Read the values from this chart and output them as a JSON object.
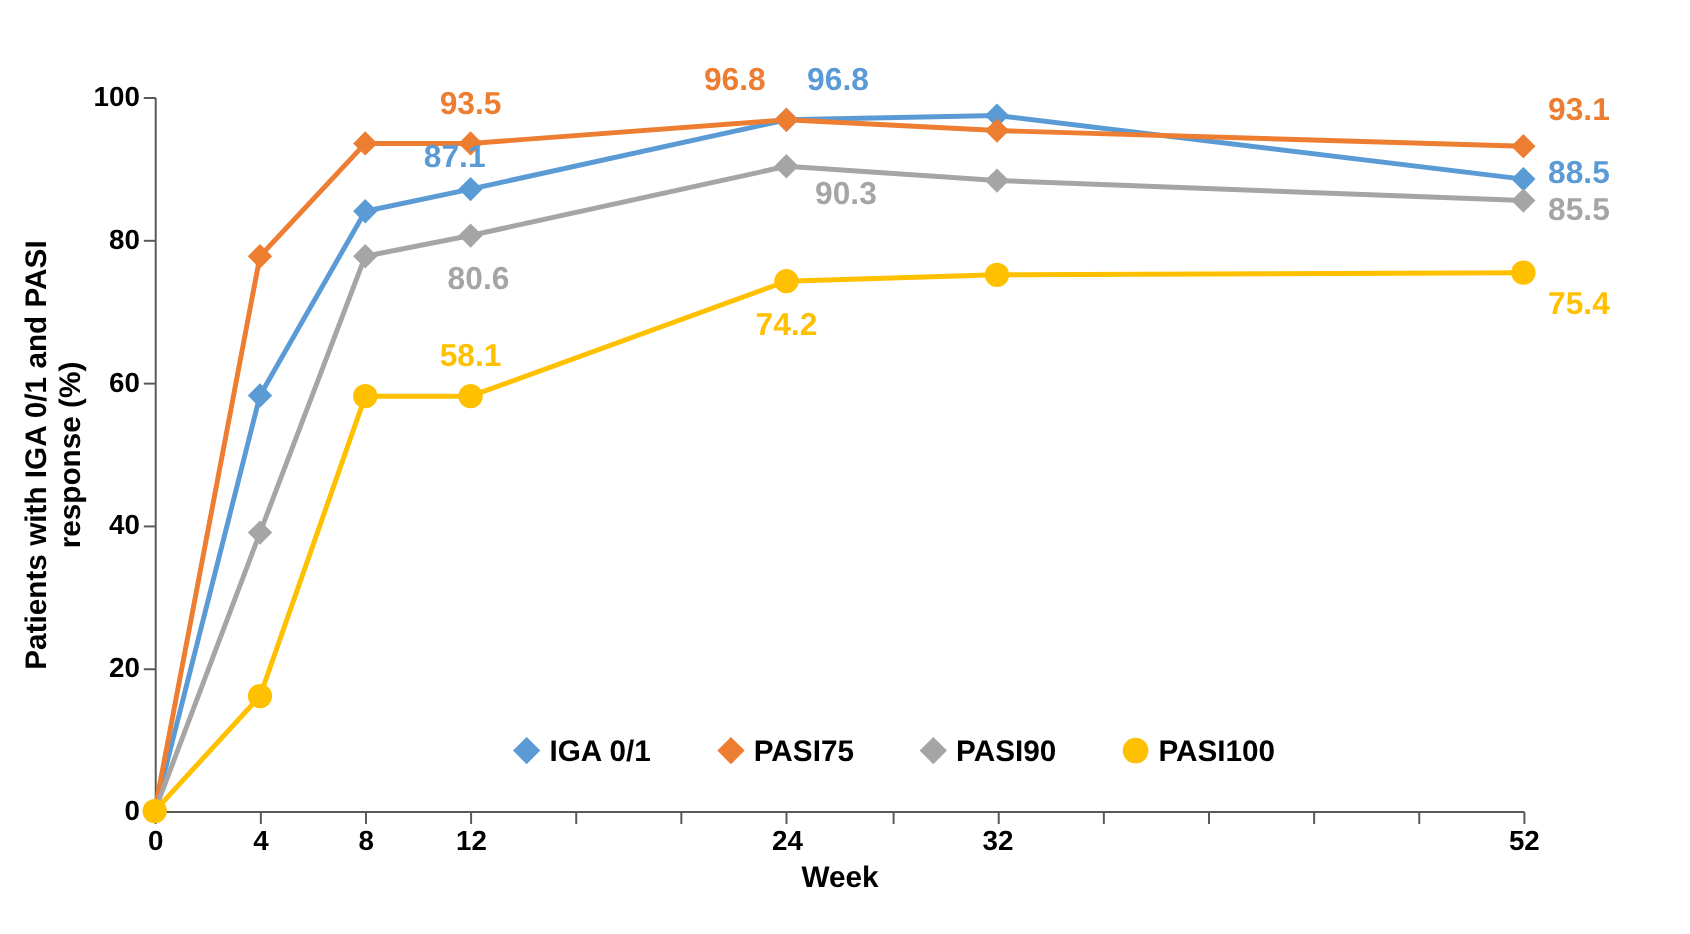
{
  "chart_data": {
    "type": "line",
    "xlabel": "Week",
    "ylabel": "Patients with IGA 0/1 and PASI response (%)",
    "x": [
      0,
      4,
      8,
      12,
      24,
      32,
      52
    ],
    "xlim": [
      0,
      52
    ],
    "xticks": [
      0,
      4,
      8,
      12,
      {
        "value": 16,
        "label": null
      },
      {
        "value": 20,
        "label": null
      },
      24,
      {
        "value": 28,
        "label": null
      },
      32,
      {
        "value": 36,
        "label": null
      },
      {
        "value": 40,
        "label": null
      },
      {
        "value": 44,
        "label": null
      },
      {
        "value": 48,
        "label": null
      },
      52
    ],
    "ylim": [
      0,
      100
    ],
    "yticks": [
      0,
      20,
      40,
      60,
      80,
      100
    ],
    "grid": false,
    "legend": "bottom",
    "line_style": "solid",
    "series": [
      {
        "name": "IGA 0/1",
        "color": "#5b9bd5",
        "marker": "diamond",
        "values": [
          0,
          58.2,
          84.0,
          87.1,
          96.8,
          97.4,
          88.5
        ],
        "value_labels": [
          null,
          null,
          null,
          "87.1",
          "96.8",
          null,
          "88.5"
        ]
      },
      {
        "name": "PASI75",
        "color": "#ed7d31",
        "marker": "diamond",
        "values": [
          0,
          77.7,
          93.5,
          93.5,
          96.8,
          95.3,
          93.1
        ],
        "value_labels": [
          null,
          null,
          null,
          "93.5",
          "96.8",
          null,
          "93.1"
        ]
      },
      {
        "name": "PASI90",
        "color": "#a5a5a5",
        "marker": "diamond",
        "values": [
          0,
          39.0,
          77.7,
          80.6,
          90.3,
          88.3,
          85.5
        ],
        "value_labels": [
          null,
          null,
          null,
          "80.6",
          "90.3",
          null,
          "85.5"
        ]
      },
      {
        "name": "PASI100",
        "color": "#ffc000",
        "marker": "circle",
        "values": [
          0,
          16.1,
          58.1,
          58.1,
          74.2,
          75.1,
          75.4
        ],
        "value_labels": [
          null,
          null,
          null,
          "58.1",
          "74.2",
          null,
          "75.4"
        ]
      }
    ]
  }
}
